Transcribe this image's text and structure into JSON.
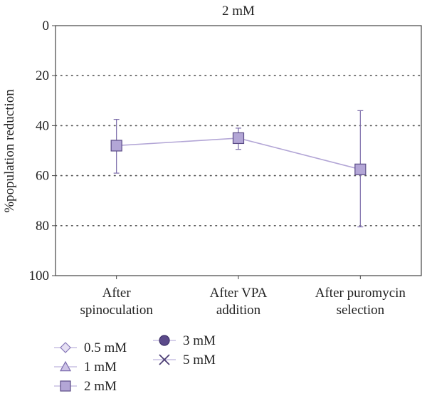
{
  "chart_data": {
    "type": "line",
    "title": "2 mM",
    "xlabel": "",
    "ylabel": "%population reduction",
    "ylim": [
      0,
      100
    ],
    "y_inverted": true,
    "y_ticks": [
      0,
      20,
      40,
      60,
      80,
      100
    ],
    "grid": "horizontal dotted",
    "categories": [
      [
        "After",
        "spinoculation"
      ],
      [
        "After VPA",
        "addition"
      ],
      [
        "After puromycin",
        "selection"
      ]
    ],
    "series": [
      {
        "name": "2 mM",
        "marker": "square",
        "color": "#b3a6d6",
        "line_color": "#b3a6d6",
        "values": [
          48,
          45,
          57.5
        ],
        "error_low": [
          37.5,
          41,
          34
        ],
        "error_high": [
          59,
          49.5,
          80.5
        ]
      }
    ],
    "legend": {
      "placement": "bottom-left",
      "entries": [
        {
          "label": "0.5 mM",
          "marker": "diamond",
          "color": "#e6e0f3"
        },
        {
          "label": "1 mM",
          "marker": "triangle",
          "color": "#cdc3e6"
        },
        {
          "label": "2 mM",
          "marker": "square",
          "color": "#b3a6d6"
        },
        {
          "label": "3 mM",
          "marker": "circle",
          "color": "#5b4a8a"
        },
        {
          "label": "5 mM",
          "marker": "x",
          "color": "#4d3f75"
        }
      ]
    }
  }
}
